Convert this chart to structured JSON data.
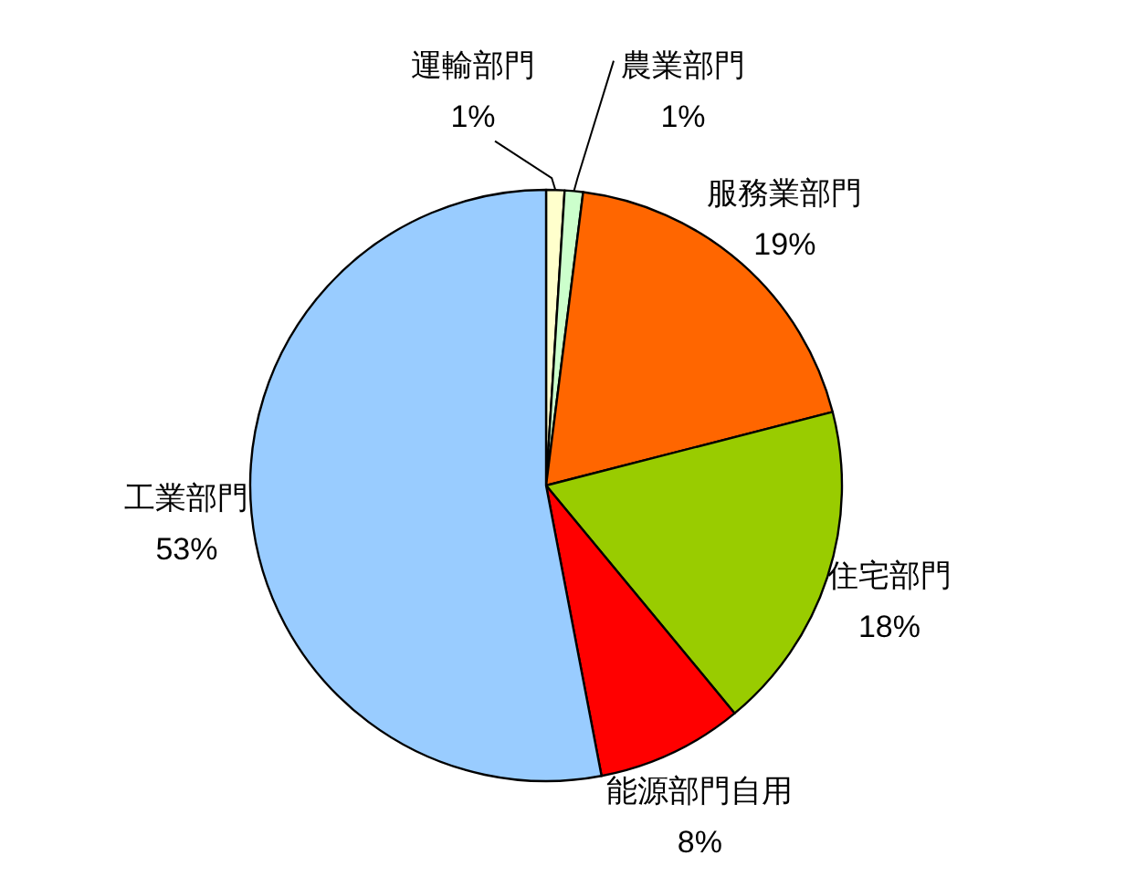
{
  "chart_data": {
    "type": "pie",
    "categories": [
      "運輸部門",
      "農業部門",
      "服務業部門",
      "住宅部門",
      "能源部門自用",
      "工業部門"
    ],
    "values": [
      1,
      1,
      19,
      18,
      8,
      53
    ],
    "colors": [
      "#ffffcc",
      "#ccffcc",
      "#ff6600",
      "#99cc00",
      "#ff0000",
      "#99ccff"
    ],
    "value_labels": [
      "1%",
      "1%",
      "19%",
      "18%",
      "8%",
      "53%"
    ]
  }
}
